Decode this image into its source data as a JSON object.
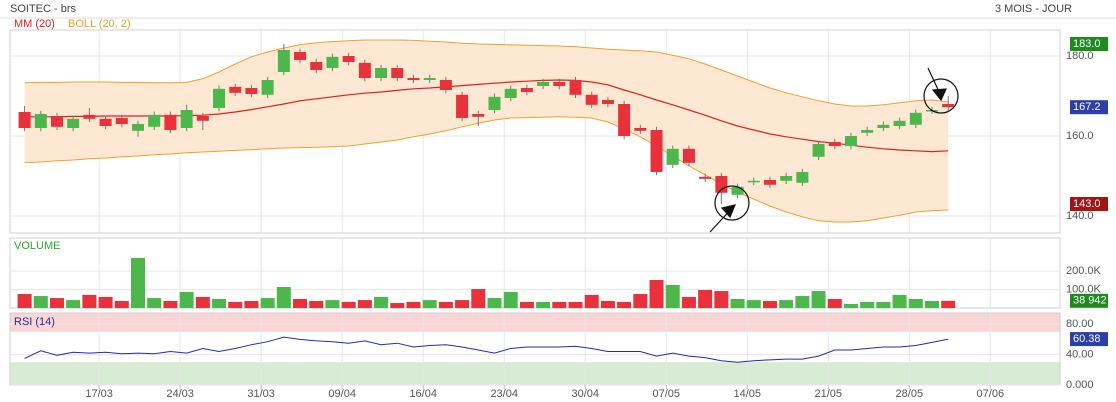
{
  "header": {
    "title": "SOITEC - brs",
    "period": "3 MOIS - JOUR"
  },
  "chart_data": [
    {
      "type": "candlestick",
      "grid": true,
      "up_color": "#4cb84c",
      "down_color": "#e8313a",
      "xlim": [
        -0.9,
        63.9
      ],
      "xticks": [
        {
          "value": 4.6,
          "label": "17/03"
        },
        {
          "value": 9.6,
          "label": "24/03"
        },
        {
          "value": 14.6,
          "label": "31/03"
        },
        {
          "value": 19.6,
          "label": "09/04"
        },
        {
          "value": 24.6,
          "label": "16/04"
        },
        {
          "value": 29.6,
          "label": "23/04"
        },
        {
          "value": 34.6,
          "label": "30/04"
        },
        {
          "value": 39.6,
          "label": "07/05"
        },
        {
          "value": 44.6,
          "label": "14/05"
        },
        {
          "value": 49.6,
          "label": "21/05"
        },
        {
          "value": 54.6,
          "label": "28/05"
        },
        {
          "value": 59.6,
          "label": "07/06"
        }
      ],
      "ylim": [
        135.75,
        186.5
      ],
      "yticks": [
        {
          "value": 140,
          "label": "140.0"
        },
        {
          "value": 160,
          "label": "160.0"
        },
        {
          "value": 180,
          "label": "180.0"
        }
      ],
      "open": [
        166.0,
        162.0,
        165.0,
        162.0,
        165.3,
        164.3,
        164.5,
        161.3,
        162.3,
        165.3,
        162.0,
        165.0,
        167.0,
        172.3,
        172.0,
        170.3,
        176.0,
        181.0,
        178.5,
        177.0,
        180.0,
        178.3,
        174.5,
        177.0,
        174.5,
        174.0,
        174.0,
        170.3,
        165.5,
        166.5,
        169.5,
        172.0,
        172.5,
        173.5,
        174.0,
        170.3,
        169.0,
        168.0,
        162.0,
        161.5,
        152.8,
        156.8,
        149.8,
        150.0,
        145.3,
        148.5,
        149.0,
        148.8,
        148.3,
        154.8,
        158.5,
        157.5,
        160.8,
        162.0,
        162.5,
        162.8,
        166.3,
        168.0
      ],
      "high": [
        167.5,
        166.3,
        165.8,
        165.1,
        167.0,
        165.1,
        165.3,
        163.8,
        166.1,
        166.1,
        167.8,
        165.8,
        172.6,
        173.1,
        172.8,
        174.8,
        183.0,
        181.8,
        179.3,
        180.6,
        180.8,
        179.1,
        177.8,
        177.8,
        175.3,
        175.3,
        174.8,
        171.1,
        166.3,
        170.6,
        172.6,
        172.8,
        174.3,
        174.3,
        174.8,
        171.1,
        169.8,
        168.8,
        162.8,
        162.3,
        157.6,
        157.6,
        150.6,
        150.8,
        148.1,
        149.6,
        149.8,
        150.8,
        151.8,
        158.8,
        159.3,
        160.8,
        162.3,
        163.6,
        164.6,
        166.6,
        167.3,
        170.0
      ],
      "low": [
        161.2,
        161.2,
        161.5,
        161.2,
        163.5,
        161.7,
        162.2,
        159.8,
        161.5,
        160.7,
        161.2,
        161.5,
        166.2,
        170.0,
        169.7,
        169.5,
        175.2,
        178.2,
        175.7,
        176.2,
        177.7,
        173.7,
        173.7,
        173.7,
        173.2,
        173.2,
        170.7,
        163.7,
        162.5,
        165.7,
        168.7,
        170.2,
        171.7,
        171.7,
        169.5,
        167.0,
        167.2,
        159.2,
        160.5,
        150.2,
        152.0,
        152.5,
        148.5,
        143.0,
        144.5,
        147.7,
        147.0,
        148.0,
        147.5,
        154.0,
        156.7,
        156.7,
        160.0,
        161.2,
        161.7,
        162.0,
        165.5,
        166.4
      ],
      "close": [
        162.0,
        165.5,
        162.3,
        164.3,
        164.3,
        162.5,
        163.0,
        163.0,
        165.3,
        161.5,
        166.5,
        163.8,
        171.8,
        170.8,
        170.5,
        174.0,
        181.5,
        179.0,
        176.5,
        179.8,
        178.5,
        174.5,
        177.0,
        174.5,
        174.0,
        174.5,
        171.5,
        164.5,
        164.8,
        169.8,
        171.8,
        171.0,
        173.5,
        172.5,
        170.3,
        167.8,
        168.0,
        160.0,
        161.3,
        151.0,
        156.8,
        153.3,
        149.3,
        145.8,
        147.3,
        148.8,
        147.8,
        150.0,
        151.0,
        158.0,
        157.5,
        160.0,
        161.5,
        162.8,
        163.8,
        165.8,
        166.5,
        167.2
      ],
      "series": [
        {
          "name": "MM (20)",
          "color": "#e02020",
          "values": [
            164.8,
            164.8,
            164.8,
            164.9,
            164.9,
            165,
            165,
            165,
            165,
            165,
            165.1,
            165.2,
            165.5,
            166,
            166.6,
            167.3,
            168,
            168.8,
            169.3,
            169.8,
            170.3,
            170.7,
            171,
            171.4,
            171.8,
            172,
            172.3,
            172.6,
            172.9,
            173.2,
            173.5,
            173.7,
            173.9,
            174,
            173.9,
            173.5,
            172.8,
            171.5,
            170.3,
            169,
            167.8,
            166.5,
            165.2,
            163.8,
            162.5,
            161.5,
            160.5,
            159.8,
            159.2,
            158.6,
            158.2,
            157.7,
            157.2,
            156.8,
            156.5,
            156.3,
            156.1,
            156.3
          ]
        },
        {
          "name": "BOLL (20, 2)",
          "color": "#f0a030",
          "fill": "#fde9d3",
          "upper": [
            173.3,
            173.4,
            173.4,
            173.5,
            173.5,
            173.5,
            173.4,
            173.4,
            173.3,
            173.3,
            173.4,
            174.3,
            176,
            178,
            179.8,
            181,
            182,
            182.8,
            183.3,
            183.6,
            183.8,
            184,
            184,
            184,
            183.9,
            183.7,
            183.5,
            183.2,
            183,
            182.9,
            182.8,
            182.7,
            182.6,
            182.5,
            182.3,
            182,
            181.7,
            181.5,
            181.3,
            181,
            180.2,
            179.3,
            178,
            176.5,
            175,
            173.5,
            172,
            170.8,
            169.8,
            168.8,
            168,
            167.5,
            167.5,
            167.8,
            168.3,
            168.8,
            169,
            168.5
          ],
          "lower": [
            153.3,
            153.5,
            153.8,
            154,
            154.3,
            154.5,
            154.8,
            155,
            155.3,
            155.5,
            155.8,
            156,
            156.2,
            156.4,
            156.6,
            156.8,
            157,
            157.1,
            157.2,
            157.3,
            157.5,
            158,
            158.5,
            159,
            159.8,
            160.5,
            161.3,
            162.3,
            163.2,
            164,
            164.5,
            164.6,
            164.7,
            164.8,
            164.7,
            164.5,
            163.5,
            161.8,
            159.8,
            157.5,
            155,
            152.5,
            150.3,
            148,
            146,
            144.2,
            142.5,
            141,
            139.8,
            138.8,
            138.5,
            138.5,
            138.8,
            139.5,
            140.2,
            141,
            141.3,
            141.5
          ]
        }
      ],
      "price_markers": [
        {
          "value": 183.0,
          "label": "183.0",
          "color": "#1f8a1f"
        },
        {
          "value": 167.2,
          "label": "167.2",
          "color": "#2a3fa8"
        },
        {
          "value": 143.0,
          "label": "143.0",
          "color": "#a31414"
        }
      ]
    },
    {
      "type": "bar",
      "title": "VOLUME",
      "title_color": "#2fa52f",
      "ylim": [
        0,
        380000
      ],
      "yticks": [
        {
          "value": 100000,
          "label": "100.0K"
        },
        {
          "value": 200000,
          "label": "200.0K"
        }
      ],
      "values": [
        76000,
        65000,
        54000,
        43000,
        71000,
        60000,
        38000,
        272000,
        54000,
        38000,
        87000,
        60000,
        49000,
        33000,
        38000,
        54000,
        114000,
        49000,
        38000,
        43000,
        33000,
        43000,
        60000,
        27000,
        33000,
        43000,
        33000,
        43000,
        103000,
        54000,
        87000,
        33000,
        33000,
        33000,
        33000,
        71000,
        38000,
        33000,
        76000,
        152000,
        125000,
        60000,
        98000,
        92000,
        49000,
        43000,
        38000,
        43000,
        65000,
        92000,
        49000,
        22000,
        33000,
        33000,
        71000,
        49000,
        38000,
        38942
      ],
      "last_marker": {
        "value": 38942,
        "label": "38 942",
        "color": "#1f8a1f"
      }
    },
    {
      "type": "line",
      "title": "RSI (14)",
      "title_color": "#2a2a9a",
      "color": "#2a2aa8",
      "ylim": [
        0,
        94.7
      ],
      "yticks": [
        {
          "value": 0,
          "label": "0.000"
        },
        {
          "value": 40,
          "label": "40.00"
        },
        {
          "value": 80,
          "label": "80.00"
        }
      ],
      "overbought": 70,
      "oversold": 30,
      "overbought_color": "#f9d5d5",
      "oversold_color": "#d8ecd5",
      "values": [
        35,
        45,
        39,
        43,
        42,
        43,
        41,
        42,
        41,
        44,
        42,
        48,
        44,
        48,
        53,
        57,
        63,
        60,
        58,
        57,
        55,
        58,
        53,
        55,
        50,
        52,
        53,
        50,
        46,
        42,
        48,
        50,
        50,
        50,
        51,
        48,
        44,
        44,
        44,
        38,
        42,
        38,
        36,
        32,
        30,
        32,
        33,
        34,
        34,
        38,
        46,
        46,
        48,
        50,
        50,
        52,
        56,
        60.38
      ],
      "last_marker": {
        "value": 60.38,
        "color": "#2a3fa8"
      }
    }
  ]
}
